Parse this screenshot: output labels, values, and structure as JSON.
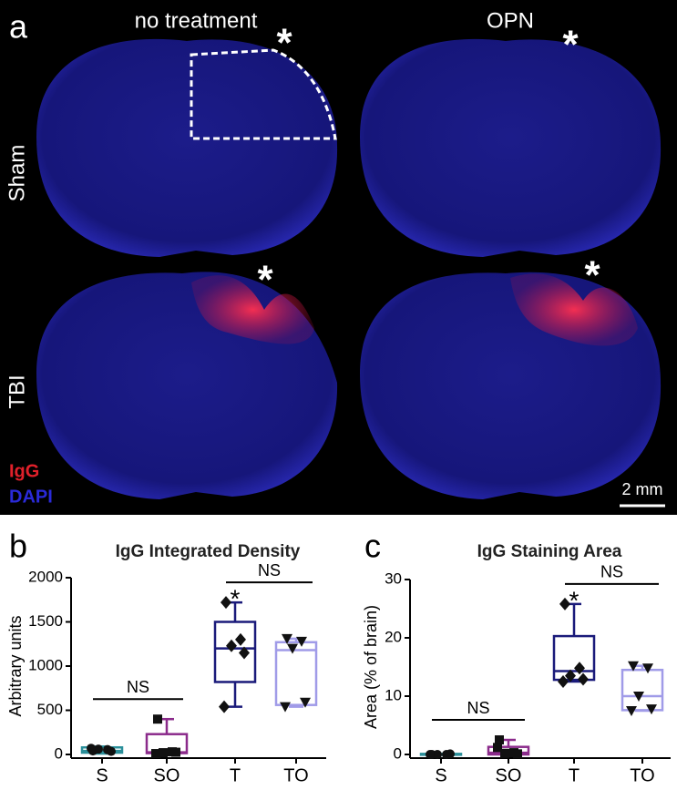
{
  "panel_a": {
    "label": "a",
    "columns": [
      "no treatment",
      "OPN"
    ],
    "rows": [
      "Sham",
      "TBI"
    ],
    "legend": [
      {
        "text": "IgG",
        "color": "#e0202a"
      },
      {
        "text": "DAPI",
        "color": "#2a2ad8"
      }
    ],
    "scale_bar": "2 mm",
    "markers": [
      "*",
      "*",
      "*",
      "*"
    ]
  },
  "chart_data": [
    {
      "type": "box",
      "panel_label": "b",
      "title": "IgG Integrated Density",
      "y_label": "Arbitrary units",
      "categories": [
        "S",
        "SO",
        "T",
        "TO"
      ],
      "ylim": [
        0,
        2000
      ],
      "yticks": [
        0,
        500,
        1000,
        1500,
        2000
      ],
      "boxes": [
        {
          "color": "#2a8f9a",
          "marker": "circle",
          "min": 10,
          "q1": 20,
          "median": 40,
          "q3": 80,
          "max": 90,
          "points": [
            40,
            55,
            60,
            35,
            70
          ]
        },
        {
          "color": "#8b2b8b",
          "marker": "square",
          "min": 0,
          "q1": 15,
          "median": 25,
          "q3": 230,
          "max": 400,
          "points": [
            400,
            30,
            20,
            25,
            10
          ]
        },
        {
          "color": "#1a1a7a",
          "marker": "diamond",
          "min": 540,
          "q1": 820,
          "median": 1200,
          "q3": 1500,
          "max": 1720,
          "points": [
            1720,
            1300,
            1230,
            1150,
            540
          ]
        },
        {
          "color": "#a09be8",
          "marker": "triangle",
          "min": 540,
          "q1": 560,
          "median": 1180,
          "q3": 1270,
          "max": 1310,
          "points": [
            1310,
            1280,
            1200,
            590,
            540
          ]
        }
      ],
      "annotations": [
        {
          "text": "NS",
          "from": "S",
          "to": "SO"
        },
        {
          "text": "NS",
          "from": "T",
          "to": "TO"
        },
        {
          "text": "*",
          "at": "T"
        }
      ]
    },
    {
      "type": "box",
      "panel_label": "c",
      "title": "IgG Staining Area",
      "y_label": "Area (% of brain)",
      "categories": [
        "S",
        "SO",
        "T",
        "TO"
      ],
      "ylim": [
        0,
        30
      ],
      "yticks": [
        0,
        10,
        20,
        30
      ],
      "boxes": [
        {
          "color": "#2a8f9a",
          "marker": "circle",
          "min": 0,
          "q1": 0,
          "median": 0,
          "q3": 0.1,
          "max": 0.1,
          "points": [
            0,
            0,
            0,
            0.1,
            0
          ]
        },
        {
          "color": "#8b2b8b",
          "marker": "square",
          "min": 0,
          "q1": 0,
          "median": 0.3,
          "q3": 1.3,
          "max": 2.5,
          "points": [
            2.5,
            0.3,
            0.2,
            0.1,
            1.2
          ]
        },
        {
          "color": "#1a1a7a",
          "marker": "diamond",
          "min": 12.5,
          "q1": 12.8,
          "median": 14.3,
          "q3": 20.3,
          "max": 25.8,
          "points": [
            25.8,
            14.8,
            13.5,
            12.9,
            12.5
          ]
        },
        {
          "color": "#a09be8",
          "marker": "triangle",
          "min": 7.5,
          "q1": 7.6,
          "median": 10,
          "q3": 14.5,
          "max": 15.2,
          "points": [
            15.2,
            14.8,
            10,
            7.8,
            7.5
          ]
        }
      ],
      "annotations": [
        {
          "text": "NS",
          "from": "S",
          "to": "SO"
        },
        {
          "text": "NS",
          "from": "T",
          "to": "TO"
        },
        {
          "text": "*",
          "at": "T"
        }
      ]
    }
  ]
}
